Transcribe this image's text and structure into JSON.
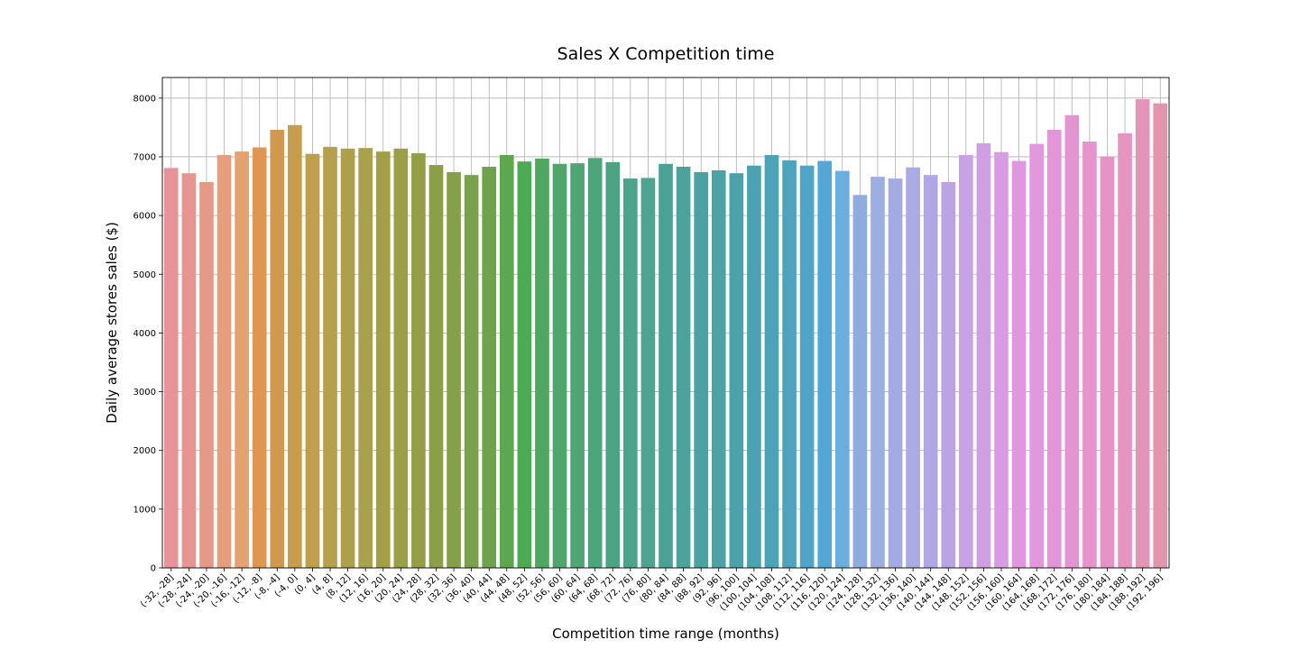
{
  "chart_data": {
    "type": "bar",
    "title": "Sales X Competition time",
    "xlabel": "Competition time range (months)",
    "ylabel": "Daily average stores sales ($)",
    "ylim": [
      0,
      8350
    ],
    "yticks": [
      0,
      1000,
      2000,
      3000,
      4000,
      5000,
      6000,
      7000,
      8000
    ],
    "grid": true,
    "categories": [
      "(-32, -28]",
      "(-28, -24]",
      "(-24, -20]",
      "(-20, -16]",
      "(-16, -12]",
      "(-12, -8]",
      "(-8, -4]",
      "(-4, 0]",
      "(0, 4]",
      "(4, 8]",
      "(8, 12]",
      "(12, 16]",
      "(16, 20]",
      "(20, 24]",
      "(24, 28]",
      "(28, 32]",
      "(32, 36]",
      "(36, 40]",
      "(40, 44]",
      "(44, 48]",
      "(48, 52]",
      "(52, 56]",
      "(56, 60]",
      "(60, 64]",
      "(64, 68]",
      "(68, 72]",
      "(72, 76]",
      "(76, 80]",
      "(80, 84]",
      "(84, 88]",
      "(88, 92]",
      "(92, 96]",
      "(96, 100]",
      "(100, 104]",
      "(104, 108]",
      "(108, 112]",
      "(112, 116]",
      "(116, 120]",
      "(120, 124]",
      "(124, 128]",
      "(128, 132]",
      "(132, 136]",
      "(136, 140]",
      "(140, 144]",
      "(144, 148]",
      "(148, 152]",
      "(152, 156]",
      "(156, 160]",
      "(160, 164]",
      "(164, 168]",
      "(168, 172]",
      "(172, 176]",
      "(176, 180]",
      "(180, 184]",
      "(184, 188]",
      "(188, 192]",
      "(192, 196]"
    ],
    "values": [
      6810,
      6720,
      6570,
      7030,
      7090,
      7160,
      7460,
      7540,
      7050,
      7170,
      7140,
      7150,
      7090,
      7140,
      7060,
      6860,
      6740,
      6690,
      6830,
      7030,
      6920,
      6970,
      6880,
      6890,
      6980,
      6910,
      6630,
      6640,
      6880,
      6830,
      6740,
      6770,
      6720,
      6850,
      7030,
      6940,
      6850,
      6930,
      6760,
      6350,
      6660,
      6630,
      6820,
      6690,
      6570,
      7030,
      7230,
      7080,
      6930,
      7220,
      7460,
      7710,
      7260,
      7000,
      7400,
      7980,
      7910
    ],
    "colors": [
      "#e8939a",
      "#e69590",
      "#e59a88",
      "#e69f7c",
      "#e3a270",
      "#dd9751",
      "#cf9a4d",
      "#c79d4b",
      "#bf9f4c",
      "#b6a04c",
      "#aea04a",
      "#a8a24a",
      "#a29f47",
      "#9b9f46",
      "#949e45",
      "#8c9e47",
      "#84a048",
      "#7aa24a",
      "#6ea34c",
      "#5da74e",
      "#4caa55",
      "#4fa860",
      "#4fa66b",
      "#4ea674",
      "#4da57c",
      "#4da483",
      "#4ca48b",
      "#4ca491",
      "#4ba396",
      "#4ba39c",
      "#4ba2a0",
      "#4ba3a6",
      "#4ba2ab",
      "#4ba3b1",
      "#4ca3b8",
      "#4ea4bf",
      "#4fa5c8",
      "#52a7d6",
      "#6aaee0",
      "#90acdf",
      "#9caee2",
      "#a2ace3",
      "#aaaae4",
      "#b2a7e5",
      "#bca4e4",
      "#c8a2e4",
      "#cf9fe2",
      "#d89ce2",
      "#df98e0",
      "#e397dd",
      "#e494d8",
      "#e594d2",
      "#e793cd",
      "#e693c8",
      "#e694c0",
      "#e494b6",
      "#e494ad"
    ]
  }
}
